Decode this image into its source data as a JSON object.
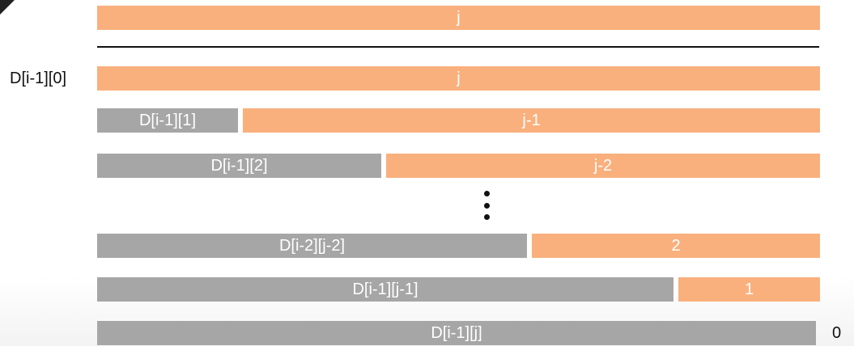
{
  "diagram": {
    "top_bar": "j",
    "side_label": "D[i-1][0]",
    "end_label": "0",
    "rows": [
      {
        "left": "",
        "right": "j"
      },
      {
        "left": "D[i-1][1]",
        "right": "j-1"
      },
      {
        "left": "D[i-1][2]",
        "right": "j-2"
      },
      {
        "left": "D[i-2][j-2]",
        "right": "2"
      },
      {
        "left": "D[i-1][j-1]",
        "right": "1"
      },
      {
        "left": "D[i-1][j]",
        "right": ""
      }
    ]
  },
  "colors": {
    "orange": "#f9b07d",
    "gray": "#a6a6a6"
  }
}
